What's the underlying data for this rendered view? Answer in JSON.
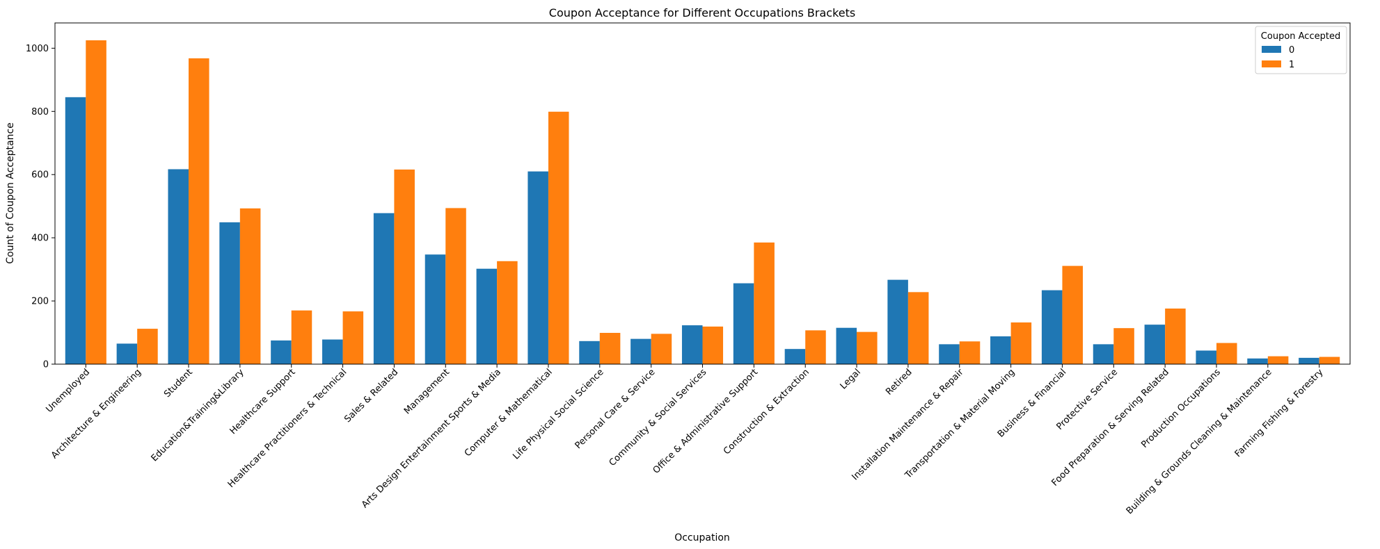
{
  "chart_data": {
    "type": "bar",
    "title": "Coupon Acceptance for Different Occupations Brackets",
    "xlabel": "Occupation",
    "ylabel": "Count of Coupon Acceptance",
    "ylim": [
      0,
      1080
    ],
    "yticks": [
      0,
      200,
      400,
      600,
      800,
      1000
    ],
    "grid": false,
    "legend": {
      "title": "Coupon Accepted",
      "placement": "top-right"
    },
    "categories": [
      "Unemployed",
      "Architecture & Engineering",
      "Student",
      "Education&Training&Library",
      "Healthcare Support",
      "Healthcare Practitioners & Technical",
      "Sales & Related",
      "Management",
      "Arts Design Entertainment Sports & Media",
      "Computer & Mathematical",
      "Life Physical Social Science",
      "Personal Care & Service",
      "Community & Social Services",
      "Office & Administrative Support",
      "Construction & Extraction",
      "Legal",
      "Retired",
      "Installation Maintenance & Repair",
      "Transportation & Material Moving",
      "Business & Financial",
      "Protective Service",
      "Food Preparation & Serving Related",
      "Production Occupations",
      "Building & Grounds Cleaning & Maintenance",
      "Farming Fishing & Forestry"
    ],
    "series": [
      {
        "name": "0",
        "color": "#1f77b4",
        "values": [
          845,
          65,
          617,
          449,
          75,
          78,
          478,
          347,
          302,
          610,
          73,
          80,
          123,
          256,
          48,
          115,
          267,
          63,
          88,
          234,
          63,
          125,
          43,
          18,
          20
        ]
      },
      {
        "name": "1",
        "color": "#ff7f0e",
        "values": [
          1025,
          112,
          968,
          493,
          170,
          167,
          616,
          494,
          326,
          799,
          99,
          96,
          119,
          385,
          107,
          102,
          228,
          72,
          132,
          311,
          114,
          176,
          67,
          25,
          23
        ]
      }
    ]
  }
}
